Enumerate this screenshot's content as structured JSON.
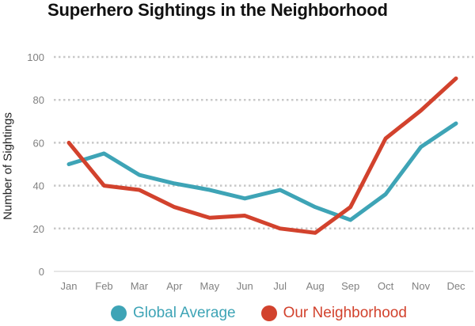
{
  "chart_data": {
    "type": "line",
    "title": "Superhero Sightings in the Neighborhood",
    "xlabel": "",
    "ylabel": "Number of Sightings",
    "categories": [
      "Jan",
      "Feb",
      "Mar",
      "Apr",
      "May",
      "Jun",
      "Jul",
      "Aug",
      "Sep",
      "Oct",
      "Nov",
      "Dec"
    ],
    "ylim": [
      0,
      100
    ],
    "yticks": [
      0,
      20,
      40,
      60,
      80,
      100
    ],
    "grid": true,
    "legend_position": "bottom",
    "series": [
      {
        "name": "Global Average",
        "color": "#3ea4b6",
        "values": [
          50,
          55,
          45,
          41,
          38,
          34,
          38,
          30,
          24,
          36,
          58,
          69
        ]
      },
      {
        "name": "Our Neighborhood",
        "color": "#d2422d",
        "values": [
          60,
          40,
          38,
          30,
          25,
          26,
          20,
          18,
          30,
          62,
          75,
          90
        ]
      }
    ]
  }
}
